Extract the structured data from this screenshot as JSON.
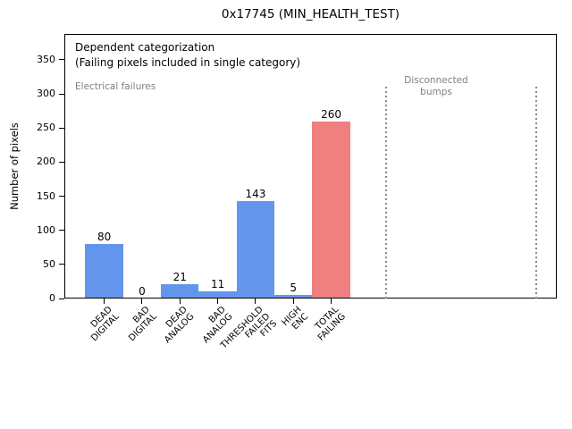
{
  "chart_data": {
    "type": "bar",
    "title": "0x17745 (MIN_HEALTH_TEST)",
    "ylabel": "Number of pixels",
    "xlabel": "",
    "ylim": [
      0,
      388
    ],
    "yticks": [
      0,
      50,
      100,
      150,
      200,
      250,
      300,
      350
    ],
    "grid": false,
    "legend": "none",
    "categories": [
      "DEAD\nDIGITAL",
      "BAD\nDIGITAL",
      "DEAD\nANALOG",
      "BAD\nANALOG",
      "THRESHOLD\nFAILED\nFITS",
      "HIGH\nENC",
      "TOTAL\nFAILING"
    ],
    "values": [
      80,
      0,
      21,
      11,
      143,
      5,
      260
    ],
    "bar_colors": [
      "#6495ED",
      "#6495ED",
      "#6495ED",
      "#6495ED",
      "#6495ED",
      "#6495ED",
      "#F08080"
    ],
    "value_labels": [
      "80",
      "0",
      "21",
      "11",
      "143",
      "5",
      "260"
    ],
    "annotations": [
      {
        "id": "dependent",
        "text": "Dependent categorization\n(Failing pixels included in single category)",
        "color": "#000000"
      },
      {
        "id": "electrical",
        "text": "Electrical failures",
        "color": "#808080"
      },
      {
        "id": "disconnected",
        "text": "Disconnected\nbumps",
        "color": "#808080"
      }
    ],
    "separators": {
      "style": "dotted",
      "color": "#888888",
      "description": "two vertical dotted lines bounding the disconnected-bumps region"
    }
  }
}
